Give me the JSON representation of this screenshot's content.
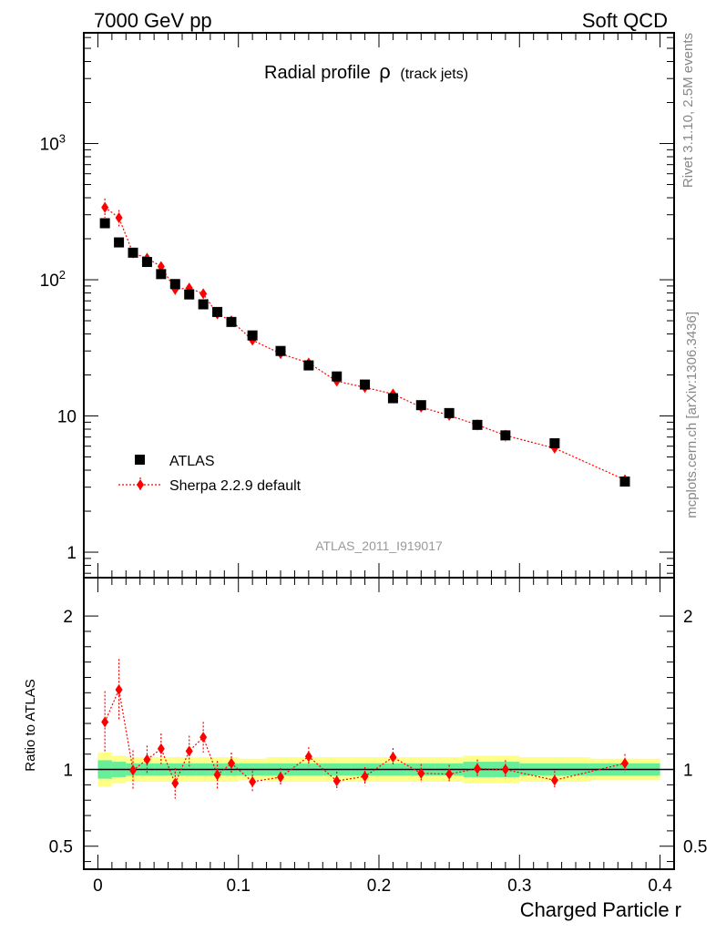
{
  "header": {
    "left": "7000 GeV pp",
    "right": "Soft QCD"
  },
  "side": {
    "top": "Rivet 3.1.10,  2.5M events",
    "bottom": "mcplots.cern.ch [arXiv:1306.3436]"
  },
  "plot_title": {
    "main": "Radial profile",
    "symbol": "ρ",
    "sub": "(track jets)"
  },
  "analysis_label": "ATLAS_2011_I919017",
  "legend": {
    "data_label": "ATLAS",
    "mc_label": "Sherpa 2.2.9 default"
  },
  "ratio_ylabel": "Ratio to ATLAS",
  "xlabel": "Charged Particle r",
  "colors": {
    "data": "#000000",
    "mc": "#ff0000",
    "band_inner": "#66ee99",
    "band_outer": "#ffff88"
  },
  "chart_data": [
    {
      "type": "scatter",
      "panel": "main",
      "yscale": "log",
      "xlim": [
        -0.01,
        0.41
      ],
      "ylim": [
        0.65,
        6500
      ],
      "x_ticks": [
        0,
        0.1,
        0.2,
        0.3,
        0.4
      ],
      "y_tick_labels": [
        "1",
        "10",
        "10^2",
        "10^3"
      ],
      "series": [
        {
          "name": "ATLAS",
          "marker": "square",
          "x": [
            0.005,
            0.015,
            0.025,
            0.035,
            0.045,
            0.055,
            0.065,
            0.075,
            0.085,
            0.095,
            0.11,
            0.13,
            0.15,
            0.17,
            0.19,
            0.21,
            0.23,
            0.25,
            0.27,
            0.29,
            0.325,
            0.375
          ],
          "y": [
            260,
            188,
            158,
            135,
            110,
            93,
            78,
            66,
            58,
            49,
            39,
            30,
            23.5,
            19.5,
            17,
            13.5,
            12,
            10.5,
            8.6,
            7.2,
            6.3,
            3.3
          ]
        },
        {
          "name": "Sherpa 2.2.9 default",
          "marker": "diamond",
          "x": [
            0.005,
            0.015,
            0.025,
            0.035,
            0.045,
            0.055,
            0.065,
            0.075,
            0.085,
            0.095,
            0.11,
            0.13,
            0.15,
            0.17,
            0.19,
            0.21,
            0.23,
            0.25,
            0.27,
            0.29,
            0.325,
            0.375
          ],
          "y": [
            340,
            285,
            157,
            144,
            125,
            85,
            87,
            79,
            56,
            50,
            36,
            28.7,
            24.5,
            18,
            16.2,
            14.5,
            11.6,
            10.1,
            8.6,
            7.2,
            5.8,
            3.4
          ],
          "yerr": [
            55,
            40,
            12,
            10,
            10,
            8,
            7,
            6,
            4,
            3.5,
            3,
            2.2,
            2,
            1.6,
            1.3,
            1.2,
            1,
            0.9,
            0.8,
            0.7,
            0.5,
            0.3
          ]
        }
      ]
    },
    {
      "type": "scatter",
      "panel": "ratio",
      "ylabel": "Ratio to ATLAS",
      "xlabel": "Charged Particle r",
      "xlim": [
        -0.01,
        0.41
      ],
      "ylim": [
        0.35,
        2.25
      ],
      "y_ticks": [
        0.5,
        1,
        2
      ],
      "y_tick_labels": [
        "0.5",
        "1",
        "2"
      ],
      "x_tick_labels": [
        "0",
        "0.1",
        "0.2",
        "0.3",
        "0.4"
      ],
      "bands": {
        "x_edges": [
          0,
          0.01,
          0.02,
          0.03,
          0.04,
          0.05,
          0.06,
          0.07,
          0.08,
          0.09,
          0.1,
          0.12,
          0.14,
          0.16,
          0.18,
          0.2,
          0.22,
          0.24,
          0.26,
          0.28,
          0.3,
          0.35,
          0.4
        ],
        "inner_lo": [
          0.94,
          0.95,
          0.96,
          0.96,
          0.96,
          0.96,
          0.96,
          0.96,
          0.96,
          0.96,
          0.96,
          0.96,
          0.96,
          0.96,
          0.96,
          0.96,
          0.96,
          0.96,
          0.95,
          0.95,
          0.96,
          0.96
        ],
        "inner_hi": [
          1.06,
          1.05,
          1.04,
          1.04,
          1.04,
          1.04,
          1.04,
          1.04,
          1.04,
          1.04,
          1.04,
          1.04,
          1.04,
          1.04,
          1.04,
          1.04,
          1.04,
          1.04,
          1.05,
          1.05,
          1.04,
          1.04
        ],
        "outer_lo": [
          0.89,
          0.91,
          0.92,
          0.92,
          0.92,
          0.92,
          0.92,
          0.92,
          0.92,
          0.92,
          0.93,
          0.92,
          0.92,
          0.92,
          0.92,
          0.92,
          0.92,
          0.92,
          0.91,
          0.91,
          0.92,
          0.93
        ],
        "outer_hi": [
          1.11,
          1.09,
          1.08,
          1.08,
          1.08,
          1.08,
          1.08,
          1.08,
          1.08,
          1.08,
          1.07,
          1.08,
          1.08,
          1.08,
          1.08,
          1.08,
          1.08,
          1.08,
          1.09,
          1.09,
          1.08,
          1.07
        ]
      },
      "series": [
        {
          "name": "Sherpa 2.2.9 default",
          "marker": "diamond",
          "x": [
            0.005,
            0.015,
            0.025,
            0.035,
            0.045,
            0.055,
            0.065,
            0.075,
            0.085,
            0.095,
            0.11,
            0.13,
            0.15,
            0.17,
            0.19,
            0.21,
            0.23,
            0.25,
            0.27,
            0.29,
            0.325,
            0.375
          ],
          "y": [
            1.31,
            1.52,
            0.995,
            1.065,
            1.135,
            0.91,
            1.12,
            1.21,
            0.965,
            1.04,
            0.92,
            0.95,
            1.085,
            0.925,
            0.955,
            1.08,
            0.975,
            0.97,
            1.005,
            1.0,
            0.93,
            1.04
          ],
          "yerr": [
            0.2,
            0.2,
            0.13,
            0.09,
            0.1,
            0.1,
            0.1,
            0.1,
            0.09,
            0.07,
            0.07,
            0.06,
            0.06,
            0.06,
            0.06,
            0.06,
            0.06,
            0.06,
            0.06,
            0.06,
            0.06,
            0.06
          ]
        }
      ]
    }
  ]
}
